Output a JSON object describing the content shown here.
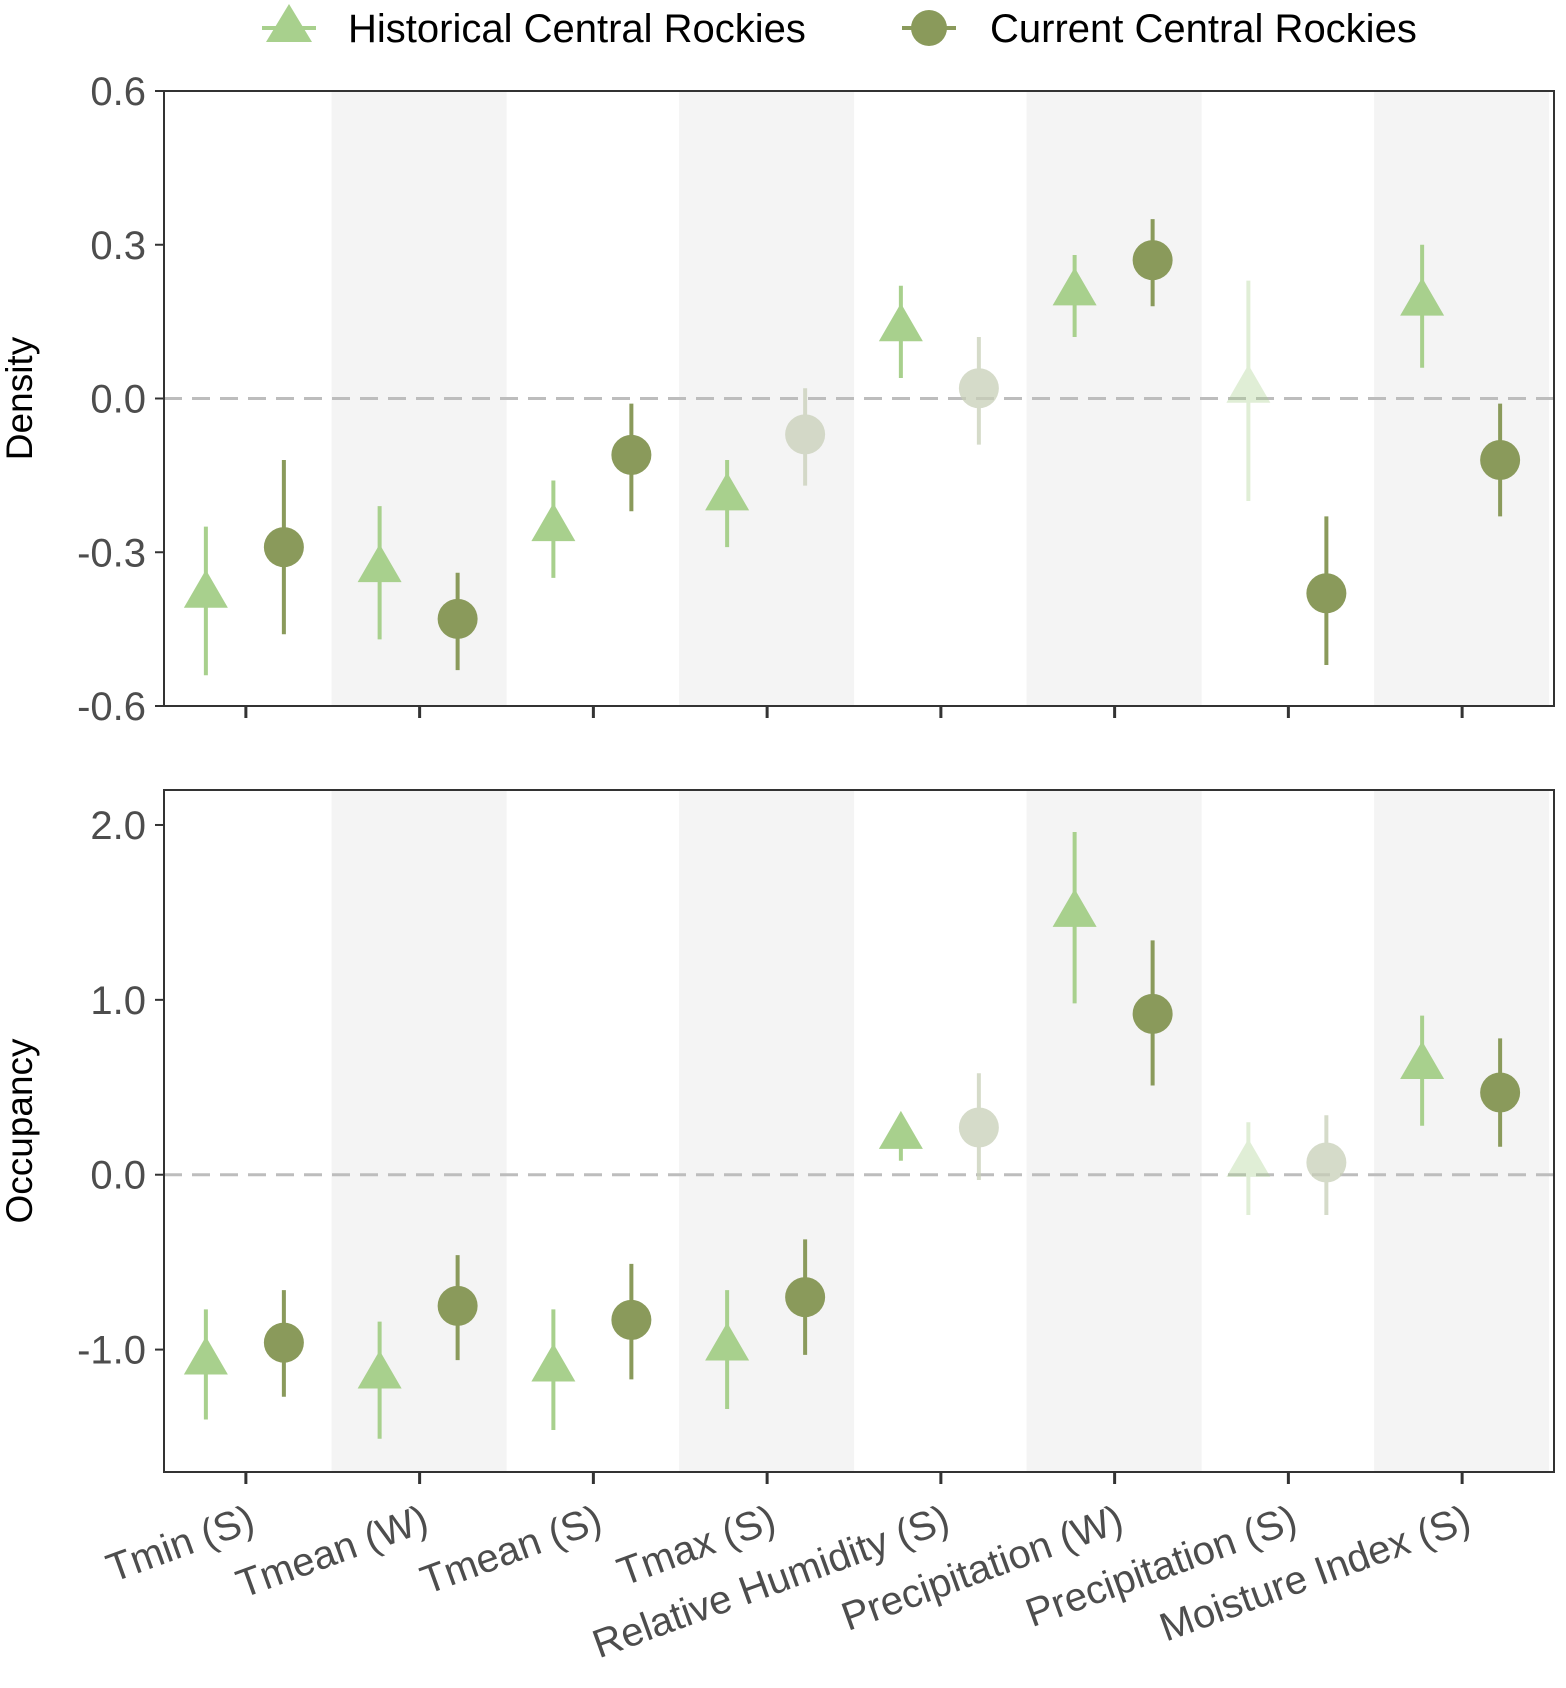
{
  "chart_data": {
    "type": "scatter",
    "title": "",
    "categories": [
      "Tmin (S)",
      "Tmean (W)",
      "Tmean (S)",
      "Tmax (S)",
      "Relative Humidity (S)",
      "Precipitation (W)",
      "Precipitation (S)",
      "Moisture Index (S)"
    ],
    "legend": {
      "position": "top",
      "entries": [
        {
          "name": "Historical Central Rockies",
          "marker": "triangle",
          "color": "#a8d08d"
        },
        {
          "name": "Current Central Rockies",
          "marker": "circle",
          "color": "#8a9a5b"
        }
      ]
    },
    "colors": {
      "historical": "#a8d08d",
      "current": "#8a9a5b",
      "nonsignificant": "#c8cfb8",
      "band": "#f4f4f4",
      "zero_line": "#bdbdbd",
      "frame": "#333333"
    },
    "panels": [
      {
        "ylabel": "Density",
        "ylim": [
          -0.6,
          0.6
        ],
        "yticks": [
          0.6,
          0.3,
          0.0,
          -0.3,
          -0.6
        ],
        "ytick_labels": [
          "0.6",
          "0.3",
          "0.0",
          "-0.3",
          "-0.6"
        ],
        "series": [
          {
            "name": "Historical Central Rockies",
            "values": [
              -0.38,
              -0.33,
              -0.25,
              -0.19,
              0.14,
              0.21,
              0.02,
              0.19
            ],
            "lower": [
              -0.54,
              -0.47,
              -0.35,
              -0.29,
              0.04,
              0.12,
              -0.2,
              0.06
            ],
            "upper": [
              -0.25,
              -0.21,
              -0.16,
              -0.12,
              0.22,
              0.28,
              0.23,
              0.3
            ],
            "significant": [
              true,
              true,
              true,
              true,
              true,
              true,
              false,
              true
            ]
          },
          {
            "name": "Current Central Rockies",
            "values": [
              -0.29,
              -0.43,
              -0.11,
              -0.07,
              0.02,
              0.27,
              -0.38,
              -0.12
            ],
            "lower": [
              -0.46,
              -0.53,
              -0.22,
              -0.17,
              -0.09,
              0.18,
              -0.52,
              -0.23
            ],
            "upper": [
              -0.12,
              -0.34,
              -0.01,
              0.02,
              0.12,
              0.35,
              -0.23,
              -0.01
            ],
            "significant": [
              true,
              true,
              true,
              false,
              false,
              true,
              true,
              true
            ]
          }
        ]
      },
      {
        "ylabel": "Occupancy",
        "ylim": [
          -1.7,
          2.2
        ],
        "yticks": [
          2.0,
          1.0,
          0.0,
          -1.0
        ],
        "ytick_labels": [
          "2.0",
          "1.0",
          "0.0",
          "-1.0"
        ],
        "series": [
          {
            "name": "Historical Central Rockies",
            "values": [
              -1.06,
              -1.14,
              -1.1,
              -0.98,
              0.23,
              1.5,
              0.07,
              0.63
            ],
            "lower": [
              -1.4,
              -1.51,
              -1.46,
              -1.34,
              0.08,
              0.98,
              -0.23,
              0.28
            ],
            "upper": [
              -0.77,
              -0.84,
              -0.77,
              -0.66,
              0.26,
              1.96,
              0.3,
              0.91
            ],
            "significant": [
              true,
              true,
              true,
              true,
              true,
              true,
              false,
              true
            ]
          },
          {
            "name": "Current Central Rockies",
            "values": [
              -0.96,
              -0.75,
              -0.83,
              -0.7,
              0.27,
              0.92,
              0.07,
              0.47
            ],
            "lower": [
              -1.27,
              -1.06,
              -1.17,
              -1.03,
              -0.03,
              0.51,
              -0.23,
              0.16
            ],
            "upper": [
              -0.66,
              -0.46,
              -0.51,
              -0.37,
              0.58,
              1.34,
              0.34,
              0.78
            ],
            "significant": [
              true,
              true,
              true,
              true,
              false,
              true,
              false,
              true
            ]
          }
        ]
      }
    ]
  }
}
